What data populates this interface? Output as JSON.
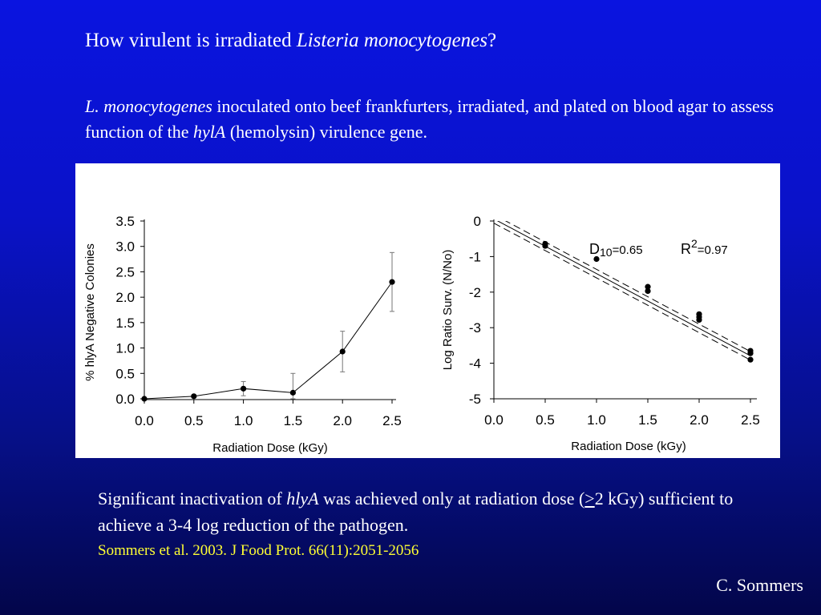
{
  "slide": {
    "title_plain": "How virulent is irradiated ",
    "title_italic": "Listeria monocytogenes",
    "title_end": "?",
    "intro_italic_1": "L. monocytogenes",
    "intro_text_1": " inoculated onto beef frankfurters, irradiated, and plated on blood agar to assess function of the ",
    "intro_italic_2": "hylA",
    "intro_text_2": " (hemolysin) virulence gene.",
    "conclusion_text_1": "Significant inactivation of ",
    "conclusion_italic": "hlyA",
    "conclusion_text_2": " was achieved only at radiation dose (",
    "conclusion_ge": ">",
    "conclusion_text_3": "2 kGy) sufficient to achieve a 3-4 log reduction of the pathogen.",
    "citation": "Sommers et al. 2003. J Food Prot. 66(11):2051-2056",
    "author": "C. Sommers",
    "citation_color": "#ffff33"
  },
  "chart_data": [
    {
      "type": "line",
      "xlabel": "Radiation Dose (kGy)",
      "ylabel": "% hlyA Negative Colonies",
      "xlim": [
        0,
        2.5
      ],
      "ylim": [
        0,
        3.5
      ],
      "x_ticks": [
        "0.0",
        "0.5",
        "1.0",
        "1.5",
        "2.0",
        "2.5"
      ],
      "y_ticks": [
        "0.0",
        "0.5",
        "1.0",
        "1.5",
        "2.0",
        "2.5",
        "3.0",
        "3.5"
      ],
      "x": [
        0,
        0.5,
        1.0,
        1.5,
        2.0,
        2.5
      ],
      "y": [
        0.0,
        0.05,
        0.2,
        0.12,
        0.93,
        2.3
      ],
      "error": [
        0,
        0,
        0.14,
        0.38,
        0.4,
        0.58
      ],
      "grid": false
    },
    {
      "type": "scatter",
      "xlabel": "Radiation Dose (kGy)",
      "ylabel": "Log Ratio Surv. (N/No)",
      "xlim": [
        0,
        2.5
      ],
      "ylim": [
        -5,
        0
      ],
      "x_ticks": [
        "0.0",
        "0.5",
        "1.0",
        "1.5",
        "2.0",
        "2.5"
      ],
      "y_ticks": [
        "0",
        "-1",
        "-2",
        "-3",
        "-4",
        "-5"
      ],
      "points": [
        [
          0.5,
          -0.64
        ],
        [
          0.5,
          -0.7
        ],
        [
          1.0,
          -1.07
        ],
        [
          1.5,
          -1.85
        ],
        [
          1.5,
          -1.97
        ],
        [
          2.0,
          -2.62
        ],
        [
          2.0,
          -2.7
        ],
        [
          2.0,
          -2.78
        ],
        [
          2.5,
          -3.65
        ],
        [
          2.5,
          -3.72
        ],
        [
          2.5,
          -3.9
        ]
      ],
      "fit": {
        "slope": -1.54,
        "intercept": 0.06
      },
      "confidence_offset": 0.12,
      "annotation": {
        "d_label": "D",
        "d_sub": "10",
        "d_value": "=0.65",
        "r_label": "R",
        "r_sup": "2",
        "r_value": "=0.97"
      },
      "grid": false
    }
  ]
}
